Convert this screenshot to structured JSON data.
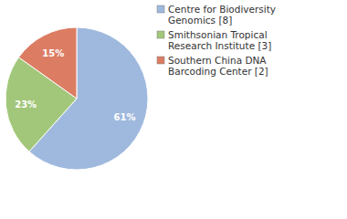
{
  "chart_data": {
    "type": "pie",
    "categories": [
      "Centre for Biodiversity Genomics [8]",
      "Smithsonian Tropical Research Institute [3]",
      "Southern China DNA Barcoding Center [2]"
    ],
    "values": [
      61,
      23,
      15
    ],
    "value_labels": [
      "61%",
      "23%",
      "15%"
    ],
    "colors": [
      "#9fb9de",
      "#a2c77b",
      "#dc7d63"
    ],
    "data_labels": true,
    "legend": "top-right"
  }
}
